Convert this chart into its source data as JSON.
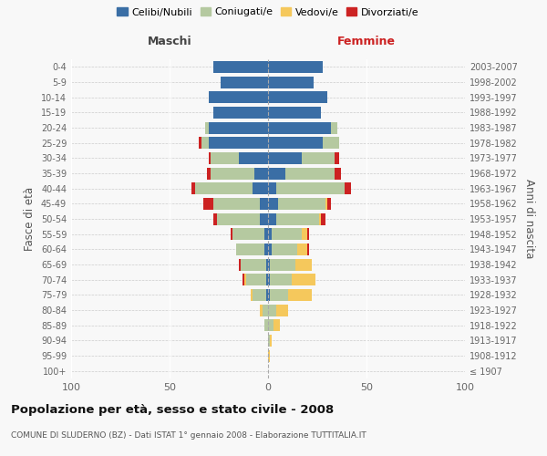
{
  "age_groups": [
    "100+",
    "95-99",
    "90-94",
    "85-89",
    "80-84",
    "75-79",
    "70-74",
    "65-69",
    "60-64",
    "55-59",
    "50-54",
    "45-49",
    "40-44",
    "35-39",
    "30-34",
    "25-29",
    "20-24",
    "15-19",
    "10-14",
    "5-9",
    "0-4"
  ],
  "birth_years": [
    "≤ 1907",
    "1908-1912",
    "1913-1917",
    "1918-1922",
    "1923-1927",
    "1928-1932",
    "1933-1937",
    "1938-1942",
    "1943-1947",
    "1948-1952",
    "1953-1957",
    "1958-1962",
    "1963-1967",
    "1968-1972",
    "1973-1977",
    "1978-1982",
    "1983-1987",
    "1988-1992",
    "1993-1997",
    "1998-2002",
    "2003-2007"
  ],
  "male": {
    "celibi": [
      0,
      0,
      0,
      0,
      0,
      1,
      1,
      1,
      2,
      2,
      4,
      4,
      8,
      7,
      15,
      30,
      30,
      28,
      30,
      24,
      28
    ],
    "coniugati": [
      0,
      0,
      0,
      2,
      3,
      7,
      10,
      13,
      14,
      16,
      22,
      24,
      29,
      22,
      14,
      4,
      2,
      0,
      0,
      0,
      0
    ],
    "vedovi": [
      0,
      0,
      0,
      0,
      1,
      1,
      1,
      0,
      0,
      0,
      0,
      0,
      0,
      0,
      0,
      0,
      0,
      0,
      0,
      0,
      0
    ],
    "divorziati": [
      0,
      0,
      0,
      0,
      0,
      0,
      1,
      1,
      0,
      1,
      2,
      5,
      2,
      2,
      1,
      1,
      0,
      0,
      0,
      0,
      0
    ]
  },
  "female": {
    "nubili": [
      0,
      0,
      0,
      0,
      0,
      1,
      1,
      1,
      2,
      2,
      4,
      5,
      4,
      9,
      17,
      28,
      32,
      27,
      30,
      23,
      28
    ],
    "coniugate": [
      0,
      0,
      1,
      3,
      4,
      9,
      11,
      13,
      13,
      15,
      22,
      24,
      35,
      25,
      17,
      8,
      3,
      0,
      0,
      0,
      0
    ],
    "vedove": [
      0,
      1,
      1,
      3,
      6,
      12,
      12,
      8,
      5,
      3,
      1,
      1,
      0,
      0,
      0,
      0,
      0,
      0,
      0,
      0,
      0
    ],
    "divorziate": [
      0,
      0,
      0,
      0,
      0,
      0,
      0,
      0,
      1,
      1,
      2,
      2,
      3,
      3,
      2,
      0,
      0,
      0,
      0,
      0,
      0
    ]
  },
  "colors": {
    "celibi": "#3A6EA5",
    "coniugati": "#B5C9A0",
    "vedovi": "#F5C85C",
    "divorziati": "#CC2222"
  },
  "xlim": 100,
  "title": "Popolazione per età, sesso e stato civile - 2008",
  "subtitle": "COMUNE DI SLUDERNO (BZ) - Dati ISTAT 1° gennaio 2008 - Elaborazione TUTTITALIA.IT",
  "xlabel_left": "Maschi",
  "xlabel_right": "Femmine",
  "ylabel_left": "Fasce di età",
  "ylabel_right": "Anni di nascita",
  "legend_labels": [
    "Celibi/Nubili",
    "Coniugati/e",
    "Vedovi/e",
    "Divorziati/e"
  ],
  "bg_color": "#f8f8f8",
  "plot_bg": "#f8f8f8"
}
